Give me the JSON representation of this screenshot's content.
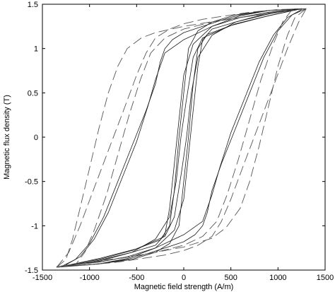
{
  "chart_data": {
    "type": "line",
    "title": "",
    "xlabel": "Magnetic field strength (A/m)",
    "ylabel": "Magnetic flux density (T)",
    "xlim": [
      -1500,
      1500
    ],
    "ylim": [
      -1.5,
      1.5
    ],
    "xticks": [
      -1500,
      -1000,
      -500,
      0,
      500,
      1000,
      1500
    ],
    "yticks": [
      -1.5,
      -1,
      -0.5,
      0,
      0.5,
      1,
      1.5
    ],
    "xtick_labels": [
      "-1500",
      "-1000",
      "-500",
      "0",
      "500",
      "1000",
      "1500"
    ],
    "ytick_labels": [
      "-1.5",
      "-1",
      "-0.5",
      "0",
      "0.5",
      "1",
      "1.5"
    ],
    "grid": false,
    "legend": false,
    "series": [
      {
        "style": "solid",
        "x": [
          1250,
          900,
          550,
          250,
          150,
          100,
          50,
          0,
          -50,
          -150,
          -300,
          -550,
          -900,
          -1300
        ],
        "y": [
          1.45,
          1.37,
          1.28,
          1.16,
          1.0,
          0.6,
          0.0,
          -0.5,
          -1.0,
          -1.2,
          -1.3,
          -1.38,
          -1.43,
          -1.46
        ]
      },
      {
        "style": "solid",
        "x": [
          -1300,
          -900,
          -550,
          -250,
          -150,
          -100,
          -50,
          0,
          50,
          150,
          300,
          550,
          900,
          1250
        ],
        "y": [
          -1.46,
          -1.38,
          -1.28,
          -1.16,
          -1.0,
          -0.6,
          0.0,
          0.5,
          1.0,
          1.2,
          1.3,
          1.38,
          1.43,
          1.45
        ]
      },
      {
        "style": "solid",
        "x": [
          1250,
          900,
          500,
          200,
          100,
          25,
          -30,
          -80,
          -150,
          -300,
          -550,
          -900,
          -1300
        ],
        "y": [
          1.45,
          1.37,
          1.26,
          1.12,
          0.9,
          0.4,
          0.0,
          -0.5,
          -0.9,
          -1.15,
          -1.3,
          -1.4,
          -1.46
        ]
      },
      {
        "style": "solid",
        "x": [
          -1300,
          -900,
          -500,
          -200,
          -100,
          -25,
          30,
          80,
          150,
          300,
          550,
          900,
          1250
        ],
        "y": [
          -1.46,
          -1.37,
          -1.26,
          -1.12,
          -0.9,
          -0.4,
          0.0,
          0.5,
          0.9,
          1.15,
          1.3,
          1.4,
          1.45
        ]
      },
      {
        "style": "solid",
        "x": [
          1250,
          900,
          550,
          300,
          200,
          150,
          100,
          50,
          0,
          -100,
          -300,
          -600,
          -900,
          -1250
        ],
        "y": [
          1.45,
          1.39,
          1.3,
          1.22,
          1.1,
          0.8,
          0.3,
          -0.2,
          -0.7,
          -1.05,
          -1.25,
          -1.37,
          -1.43,
          -1.46
        ]
      },
      {
        "style": "solid",
        "x": [
          -1250,
          -900,
          -550,
          -300,
          -200,
          -150,
          -100,
          -50,
          0,
          100,
          300,
          600,
          900,
          1250
        ],
        "y": [
          -1.46,
          -1.39,
          -1.3,
          -1.22,
          -1.1,
          -0.8,
          -0.3,
          0.2,
          0.7,
          1.05,
          1.25,
          1.37,
          1.43,
          1.45
        ]
      },
      {
        "style": "solid",
        "x": [
          1300,
          1150,
          1000,
          850,
          700,
          550,
          400,
          300,
          250,
          200,
          120,
          0,
          -200,
          -400,
          -600,
          -900,
          -1300
        ],
        "y": [
          1.45,
          1.38,
          1.2,
          0.9,
          0.5,
          0.1,
          -0.3,
          -0.6,
          -0.85,
          -1.0,
          -1.1,
          -1.18,
          -1.25,
          -1.32,
          -1.38,
          -1.43,
          -1.46
        ]
      },
      {
        "style": "solid",
        "x": [
          -1300,
          -1150,
          -1000,
          -850,
          -700,
          -550,
          -400,
          -300,
          -250,
          -200,
          -120,
          0,
          200,
          400,
          600,
          900,
          1300
        ],
        "y": [
          -1.46,
          -1.38,
          -1.2,
          -0.9,
          -0.5,
          -0.1,
          0.3,
          0.6,
          0.85,
          1.0,
          1.1,
          1.18,
          1.25,
          1.32,
          1.38,
          1.43,
          1.45
        ]
      },
      {
        "style": "solid",
        "x": [
          1250,
          1100,
          950,
          800,
          650,
          500,
          380,
          300,
          200,
          0,
          -300,
          -600,
          -900,
          -1250
        ],
        "y": [
          1.44,
          1.35,
          1.15,
          0.85,
          0.45,
          0.05,
          -0.35,
          -0.65,
          -0.95,
          -1.1,
          -1.25,
          -1.35,
          -1.41,
          -1.45
        ]
      },
      {
        "style": "solid",
        "x": [
          -1250,
          -1100,
          -950,
          -800,
          -650,
          -500,
          -380,
          -300,
          -200,
          0,
          300,
          600,
          900,
          1250
        ],
        "y": [
          -1.44,
          -1.35,
          -1.15,
          -0.85,
          -0.45,
          -0.05,
          0.35,
          0.65,
          0.95,
          1.1,
          1.25,
          1.35,
          1.41,
          1.45
        ]
      },
      {
        "style": "dashed",
        "x": [
          1300,
          1220,
          1100,
          960,
          800,
          640,
          500,
          400,
          300,
          150,
          0,
          -200,
          -450,
          -700,
          -1000,
          -1350
        ],
        "y": [
          1.45,
          1.3,
          1.0,
          0.6,
          0.15,
          -0.3,
          -0.7,
          -0.95,
          -1.12,
          -1.22,
          -1.28,
          -1.33,
          -1.37,
          -1.41,
          -1.44,
          -1.47
        ]
      },
      {
        "style": "dashed",
        "x": [
          -1350,
          -1220,
          -1100,
          -960,
          -800,
          -640,
          -500,
          -400,
          -300,
          -150,
          0,
          200,
          450,
          700,
          1000,
          1300
        ],
        "y": [
          -1.47,
          -1.3,
          -1.0,
          -0.6,
          -0.15,
          0.3,
          0.7,
          0.95,
          1.12,
          1.22,
          1.28,
          1.33,
          1.37,
          1.41,
          1.44,
          1.45
        ]
      },
      {
        "style": "dashed",
        "x": [
          1150,
          1050,
          950,
          820,
          700,
          580,
          460,
          350,
          200,
          0,
          -300,
          -650,
          -1000,
          -1350
        ],
        "y": [
          1.44,
          1.3,
          1.05,
          0.65,
          0.2,
          -0.25,
          -0.65,
          -0.95,
          -1.12,
          -1.22,
          -1.3,
          -1.36,
          -1.41,
          -1.46
        ]
      },
      {
        "style": "dashed",
        "x": [
          -1350,
          -1150,
          -1050,
          -950,
          -820,
          -700,
          -580,
          -460,
          -350,
          -200,
          0,
          300,
          650,
          1000,
          1150
        ],
        "y": [
          -1.46,
          -1.44,
          -1.3,
          -1.05,
          -0.65,
          -0.2,
          0.25,
          0.65,
          0.95,
          1.12,
          1.22,
          1.3,
          1.36,
          1.41,
          1.44
        ]
      },
      {
        "style": "dashed",
        "x": [
          -1350,
          -1250,
          -1180,
          -1100,
          -1000,
          -900,
          -800,
          -700,
          -600,
          -450,
          -300,
          0,
          400,
          800,
          1150,
          1300
        ],
        "y": [
          -1.47,
          -1.38,
          -1.15,
          -0.8,
          -0.35,
          0.1,
          0.5,
          0.8,
          1.0,
          1.12,
          1.18,
          1.25,
          1.32,
          1.38,
          1.43,
          1.45
        ]
      },
      {
        "style": "dashed",
        "x": [
          1300,
          1180,
          1100,
          1000,
          900,
          800,
          700,
          600,
          450,
          300,
          0,
          -400,
          -800,
          -1150,
          -1350
        ],
        "y": [
          1.45,
          1.35,
          1.15,
          0.8,
          0.35,
          -0.1,
          -0.5,
          -0.8,
          -1.02,
          -1.14,
          -1.24,
          -1.32,
          -1.39,
          -1.44,
          -1.47
        ]
      }
    ]
  }
}
